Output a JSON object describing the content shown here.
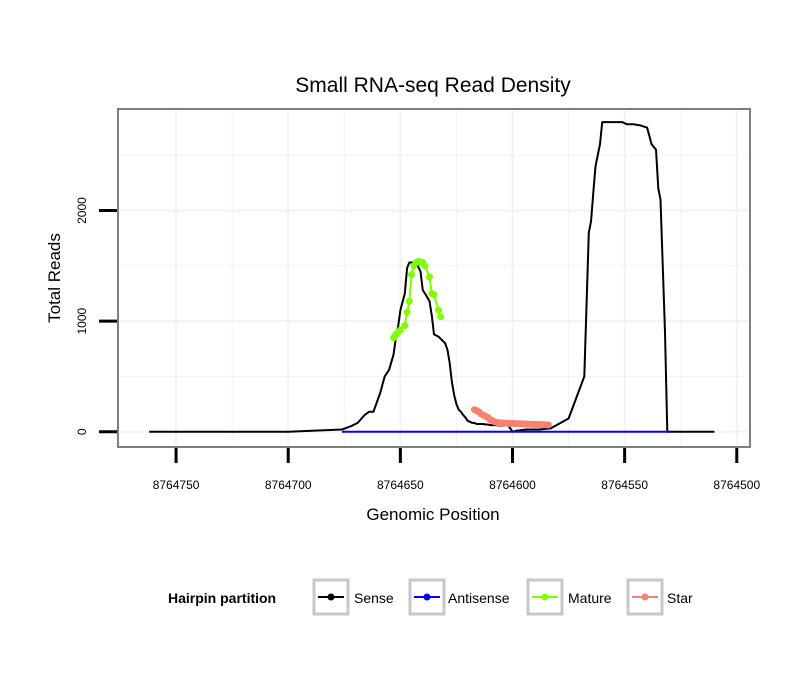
{
  "chart_data": {
    "type": "line",
    "title": "Small RNA-seq Read Density",
    "xlabel": "Genomic Position",
    "ylabel": "Total Reads",
    "x_reversed": true,
    "xlim": [
      8764775,
      8764495
    ],
    "ylim": [
      -120,
      2900
    ],
    "x_ticks": [
      8764750,
      8764700,
      8764650,
      8764600,
      8764550,
      8764500
    ],
    "x_tick_labels": [
      "8764750",
      "8764700",
      "8764650",
      "8764600",
      "8764550",
      "8764500"
    ],
    "y_ticks": [
      0,
      1000,
      2000
    ],
    "y_tick_labels": [
      "0",
      "1000",
      "2000"
    ],
    "grid": true,
    "legend": {
      "title": "Hairpin partition",
      "position": "bottom",
      "entries": [
        {
          "label": "Sense",
          "color": "#000000"
        },
        {
          "label": "Antisense",
          "color": "#0000ff"
        },
        {
          "label": "Mature",
          "color": "#7fff00"
        },
        {
          "label": "Star",
          "color": "#fa8072"
        }
      ]
    },
    "series": [
      {
        "name": "Sense",
        "color": "#000000",
        "markers": false,
        "x": [
          8764762,
          8764700,
          8764676,
          8764672,
          8764669,
          8764666,
          8764664,
          8764662,
          8764659,
          8764657,
          8764655,
          8764653,
          8764652,
          8764651,
          8764650,
          8764648,
          8764647,
          8764646,
          8764643,
          8764641,
          8764640,
          8764639,
          8764637,
          8764636,
          8764635,
          8764633,
          8764632,
          8764630,
          8764629,
          8764628,
          8764627,
          8764626,
          8764625,
          8764624,
          8764623,
          8764622,
          8764621,
          8764620,
          8764618,
          8764617,
          8764616,
          8764614,
          8764613,
          8764612,
          8764611,
          8764610,
          8764609,
          8764607,
          8764606,
          8764605,
          8764604,
          8764603,
          8764602,
          8764600,
          8764598,
          8764596,
          8764594,
          8764592,
          8764590,
          8764588,
          8764586,
          8764583,
          8764575,
          8764568,
          8764566,
          8764565,
          8764564,
          8764563,
          8764561,
          8764560,
          8764559,
          8764558,
          8764556,
          8764555,
          8764554,
          8764553,
          8764551,
          8764549,
          8764546,
          8764543,
          8764540,
          8764538,
          8764536,
          8764535,
          8764534,
          8764532,
          8764531,
          8764530,
          8764529,
          8764510
        ],
        "y": [
          0,
          0,
          20,
          50,
          80,
          150,
          180,
          180,
          350,
          500,
          560,
          700,
          850,
          950,
          1100,
          1250,
          1480,
          1530,
          1530,
          1450,
          1280,
          1250,
          1180,
          1050,
          880,
          860,
          840,
          800,
          740,
          620,
          450,
          330,
          250,
          200,
          180,
          150,
          130,
          100,
          80,
          80,
          70,
          70,
          70,
          65,
          65,
          60,
          60,
          60,
          55,
          55,
          55,
          60,
          60,
          0,
          10,
          15,
          20,
          20,
          20,
          20,
          25,
          30,
          120,
          500,
          1800,
          1900,
          2150,
          2400,
          2600,
          2800,
          2800,
          2800,
          2800,
          2800,
          2800,
          2800,
          2800,
          2780,
          2780,
          2770,
          2750,
          2600,
          2550,
          2200,
          2100,
          900,
          0,
          0,
          0,
          0
        ]
      },
      {
        "name": "Antisense",
        "color": "#0000ff",
        "markers": false,
        "x": [
          8764676,
          8764530
        ],
        "y": [
          0,
          0
        ]
      },
      {
        "name": "Mature",
        "color": "#7fff00",
        "markers": true,
        "x": [
          8764653,
          8764652,
          8764651,
          8764650,
          8764648,
          8764647,
          8764646,
          8764645,
          8764644,
          8764643,
          8764642,
          8764641,
          8764640,
          8764639,
          8764637,
          8764636,
          8764635,
          8764633,
          8764632
        ],
        "y": [
          850,
          880,
          900,
          920,
          960,
          1080,
          1180,
          1420,
          1500,
          1530,
          1540,
          1530,
          1530,
          1500,
          1400,
          1250,
          1240,
          1100,
          1040
        ]
      },
      {
        "name": "Star",
        "color": "#fa8072",
        "markers": true,
        "x": [
          8764617,
          8764616,
          8764615,
          8764614,
          8764613,
          8764612,
          8764611,
          8764610,
          8764609,
          8764608,
          8764607,
          8764606,
          8764605,
          8764604,
          8764603,
          8764602,
          8764601,
          8764600,
          8764599,
          8764598,
          8764597,
          8764596,
          8764595,
          8764594,
          8764593,
          8764592,
          8764591,
          8764590,
          8764589,
          8764588,
          8764587,
          8764586,
          8764585,
          8764584
        ],
        "y": [
          200,
          190,
          180,
          160,
          150,
          140,
          130,
          110,
          100,
          90,
          85,
          80,
          80,
          78,
          78,
          76,
          75,
          75,
          74,
          73,
          72,
          72,
          70,
          70,
          68,
          68,
          66,
          66,
          65,
          65,
          64,
          63,
          62,
          62
        ]
      }
    ]
  }
}
